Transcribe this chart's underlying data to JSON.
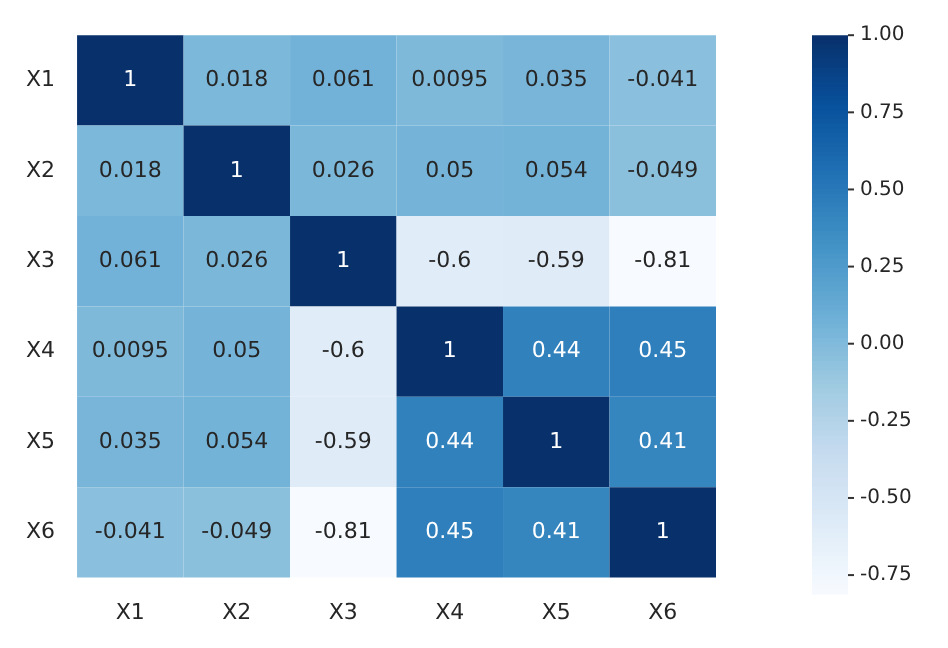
{
  "chart_data": {
    "type": "heatmap",
    "categories": [
      "X1",
      "X2",
      "X3",
      "X4",
      "X5",
      "X6"
    ],
    "y_categories": [
      "X1",
      "X2",
      "X3",
      "X4",
      "X5",
      "X6"
    ],
    "cells": [
      [
        1,
        0.018,
        0.061,
        0.0095,
        0.035,
        -0.041
      ],
      [
        0.018,
        1,
        0.026,
        0.05,
        0.054,
        -0.049
      ],
      [
        0.061,
        0.026,
        1,
        -0.6,
        -0.59,
        -0.81
      ],
      [
        0.0095,
        0.05,
        -0.6,
        1,
        0.44,
        0.45
      ],
      [
        0.035,
        0.054,
        -0.59,
        0.44,
        1,
        0.41
      ],
      [
        -0.041,
        -0.049,
        -0.81,
        0.45,
        0.41,
        1
      ]
    ],
    "data_labels": true,
    "clim": [
      -0.81,
      1
    ],
    "cticks": [
      {
        "value": 1,
        "label": "1.00"
      },
      {
        "value": 0.75,
        "label": "0.75"
      },
      {
        "value": 0.5,
        "label": "0.50"
      },
      {
        "value": 0.25,
        "label": "0.25"
      },
      {
        "value": 0,
        "label": "0.00"
      },
      {
        "value": -0.25,
        "label": "-0.25"
      },
      {
        "value": -0.5,
        "label": "-0.50"
      },
      {
        "value": -0.75,
        "label": "-0.75"
      }
    ]
  }
}
